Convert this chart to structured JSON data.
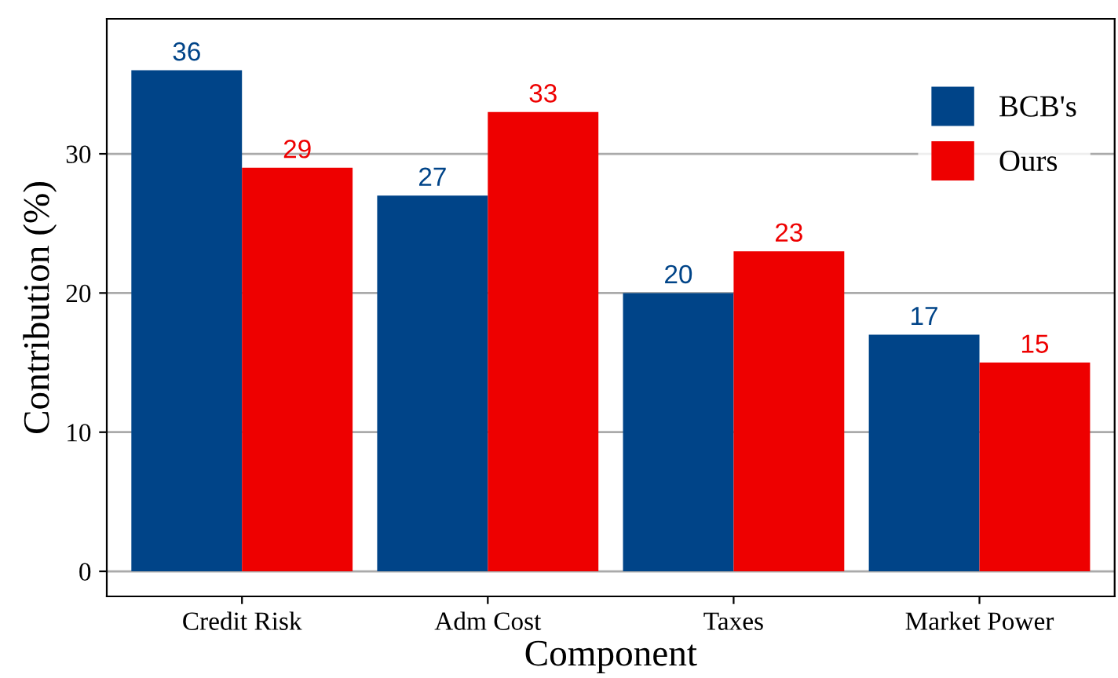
{
  "chart_data": {
    "type": "bar",
    "xlabel": "Component",
    "ylabel": "Contribution (%)",
    "categories": [
      "Credit Risk",
      "Adm Cost",
      "Taxes",
      "Market Power"
    ],
    "series": [
      {
        "name": "BCB's",
        "color": "#004488",
        "values": [
          36,
          27,
          20,
          17
        ]
      },
      {
        "name": "Ours",
        "color": "#ee0000",
        "values": [
          29,
          33,
          23,
          15
        ]
      }
    ],
    "ylim": [
      -1.8,
      39.7
    ],
    "yticks": [
      0,
      10,
      20,
      30
    ],
    "grid": "y",
    "legend": "top right",
    "data_labels": true
  }
}
